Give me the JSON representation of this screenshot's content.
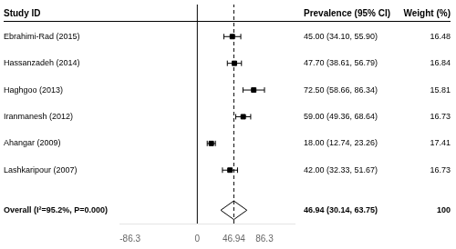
{
  "chart_data": {
    "type": "forest",
    "columns": [
      "Study ID",
      "Prevalence (95% CI)",
      "Weight (%)"
    ],
    "studies": [
      {
        "label": "Ebrahimi-Rad (2015)",
        "est": 45.0,
        "ci_lo": 34.1,
        "ci_hi": 55.9,
        "value_label": "45.00 (34.10, 55.90)",
        "weight": 16.48
      },
      {
        "label": "Hassanzadeh (2014)",
        "est": 47.7,
        "ci_lo": 38.61,
        "ci_hi": 56.79,
        "value_label": "47.70 (38.61, 56.79)",
        "weight": 16.84
      },
      {
        "label": "Haghgoo (2013)",
        "est": 72.5,
        "ci_lo": 58.66,
        "ci_hi": 86.34,
        "value_label": "72.50 (58.66, 86.34)",
        "weight": 15.81
      },
      {
        "label": "Iranmanesh (2012)",
        "est": 59.0,
        "ci_lo": 49.36,
        "ci_hi": 68.64,
        "value_label": "59.00 (49.36, 68.64)",
        "weight": 16.73
      },
      {
        "label": "Ahangar (2009)",
        "est": 18.0,
        "ci_lo": 12.74,
        "ci_hi": 23.26,
        "value_label": "18.00 (12.74, 23.26)",
        "weight": 17.41
      },
      {
        "label": "Lashkaripour (2007)",
        "est": 42.0,
        "ci_lo": 32.33,
        "ci_hi": 51.67,
        "value_label": "42.00 (32.33, 51.67)",
        "weight": 16.73
      }
    ],
    "overall": {
      "label": "Overall (I²=95.2%, P=0.000)",
      "est": 46.94,
      "ci_lo": 30.14,
      "ci_hi": 63.75,
      "value_label": "46.94 (30.14, 63.75)",
      "weight": 100
    },
    "xlim": [
      -100,
      125
    ],
    "xticks": [
      -86.3,
      0,
      46.94,
      86.3
    ],
    "reference_lines": [
      {
        "value": 0,
        "line_style": "solid"
      },
      {
        "value": 46.94,
        "line_style": "dashed"
      }
    ],
    "marker": "square",
    "color": "#000000",
    "grid": false
  }
}
